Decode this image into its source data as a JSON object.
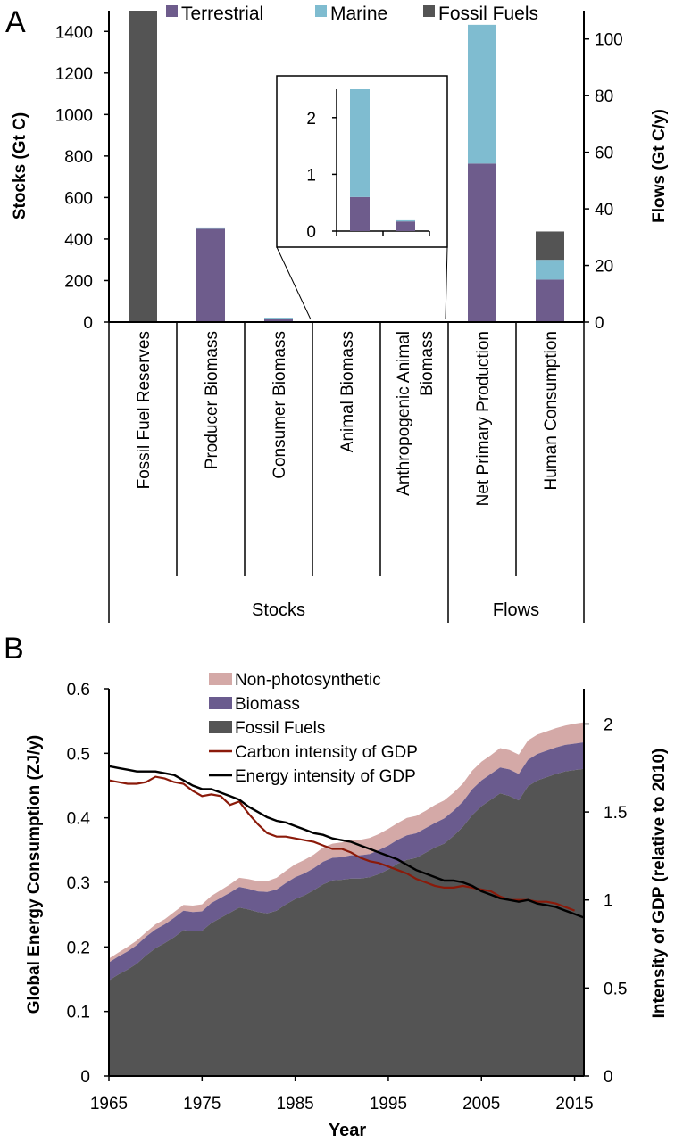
{
  "colors": {
    "terrestrial": "#6e5c8c",
    "marine": "#7fbcd0",
    "fossil": "#545454",
    "non_photosynthetic": "#d4a9a7",
    "biomass_energy": "#6a5b8e",
    "fossil_energy": "#545454",
    "carbon_intensity": "#8b1a0a",
    "energy_intensity": "#000000"
  },
  "chart_data": [
    {
      "type": "bar",
      "panel": "A",
      "legend": [
        "Terrestrial",
        "Marine",
        "Fossil Fuels"
      ],
      "ylabel": "Stocks (Gt C)",
      "ylabel_right": "Flows (Gt C/y)",
      "ylim": [
        0,
        1500
      ],
      "ylim_right": [
        0,
        110
      ],
      "yticks": [
        "0",
        "200",
        "400",
        "600",
        "800",
        "1000",
        "1200",
        "1400"
      ],
      "yticks_right": [
        "0",
        "20",
        "40",
        "60",
        "80",
        "100"
      ],
      "categories": [
        "Fossil Fuel Reserves",
        "Producer Biomass",
        "Consumer Biomass",
        "Animal Biomass",
        "Anthropogenic Animal Biomass",
        "Net Primary Production",
        "Human Consumption"
      ],
      "category_lines": [
        [
          "Fossil Fuel Reserves"
        ],
        [
          "Producer Biomass"
        ],
        [
          "Consumer Biomass"
        ],
        [
          "Animal Biomass"
        ],
        [
          "Anthropogenic Animal",
          "Biomass"
        ],
        [
          "Net Primary Production"
        ],
        [
          "Human Consumption"
        ]
      ],
      "groups": [
        {
          "label": "Stocks",
          "categories": [
            "Fossil Fuel Reserves",
            "Producer Biomass",
            "Consumer Biomass",
            "Animal Biomass",
            "Anthropogenic Animal Biomass"
          ]
        },
        {
          "label": "Flows",
          "categories": [
            "Net Primary Production",
            "Human Consumption"
          ]
        }
      ],
      "series": [
        {
          "name": "Terrestrial",
          "axis": [
            "left",
            "left",
            "left",
            "left",
            "left",
            "right",
            "right"
          ],
          "values": [
            0,
            450,
            15,
            0.6,
            0.17,
            56,
            15
          ]
        },
        {
          "name": "Marine",
          "axis": [
            "left",
            "left",
            "left",
            "left",
            "left",
            "right",
            "right"
          ],
          "values": [
            0,
            6,
            6,
            1.9,
            0.02,
            49,
            7
          ]
        },
        {
          "name": "Fossil Fuels",
          "axis": [
            "left",
            "left",
            "left",
            "left",
            "left",
            "right",
            "right"
          ],
          "values": [
            1500,
            0,
            0,
            0,
            0,
            0,
            10
          ]
        }
      ],
      "inset": {
        "ylim": [
          0,
          2.5
        ],
        "yticks": [
          "0",
          "1",
          "2"
        ],
        "categories": [
          "Animal Biomass",
          "Anthropogenic Animal Biomass"
        ],
        "series": [
          {
            "name": "Terrestrial",
            "values": [
              0.6,
              0.17
            ]
          },
          {
            "name": "Marine",
            "values": [
              1.9,
              0.02
            ]
          }
        ]
      },
      "panel_label": "A"
    },
    {
      "type": "area",
      "panel": "B",
      "xlabel": "Year",
      "ylabel": "Global Energy Consumption (ZJ/y)",
      "ylabel_right": "Intensity of GDP (relative to 2010)",
      "xlim": [
        1965,
        2016
      ],
      "ylim": [
        0,
        0.6
      ],
      "ylim_right": [
        0,
        2.2
      ],
      "xticks": [
        "1965",
        "1975",
        "1985",
        "1995",
        "2005",
        "2015"
      ],
      "yticks": [
        "0",
        "0.1",
        "0.2",
        "0.3",
        "0.4",
        "0.5",
        "0.6"
      ],
      "yticks_right": [
        "0",
        "0.5",
        "1",
        "1.5",
        "2"
      ],
      "legend": [
        "Non-photosynthetic",
        "Biomass",
        "Fossil Fuels",
        "Carbon intensity of GDP",
        "Energy intensity of GDP"
      ],
      "x": [
        1965,
        1966,
        1967,
        1968,
        1969,
        1970,
        1971,
        1972,
        1973,
        1974,
        1975,
        1976,
        1977,
        1978,
        1979,
        1980,
        1981,
        1982,
        1983,
        1984,
        1985,
        1986,
        1987,
        1988,
        1989,
        1990,
        1991,
        1992,
        1993,
        1994,
        1995,
        1996,
        1997,
        1998,
        1999,
        2000,
        2001,
        2002,
        2003,
        2004,
        2005,
        2006,
        2007,
        2008,
        2009,
        2010,
        2011,
        2012,
        2013,
        2014,
        2015,
        2016
      ],
      "series": [
        {
          "name": "Fossil Fuels",
          "stack": true,
          "values": [
            0.148,
            0.157,
            0.165,
            0.174,
            0.187,
            0.198,
            0.206,
            0.215,
            0.226,
            0.224,
            0.225,
            0.237,
            0.245,
            0.253,
            0.261,
            0.258,
            0.254,
            0.252,
            0.256,
            0.266,
            0.274,
            0.28,
            0.288,
            0.297,
            0.303,
            0.304,
            0.306,
            0.306,
            0.308,
            0.313,
            0.32,
            0.329,
            0.335,
            0.338,
            0.346,
            0.354,
            0.36,
            0.372,
            0.386,
            0.404,
            0.418,
            0.428,
            0.438,
            0.434,
            0.427,
            0.449,
            0.458,
            0.463,
            0.468,
            0.472,
            0.474,
            0.476
          ]
        },
        {
          "name": "Biomass",
          "stack": true,
          "values": [
            0.028,
            0.028,
            0.028,
            0.029,
            0.029,
            0.029,
            0.029,
            0.03,
            0.03,
            0.03,
            0.03,
            0.031,
            0.031,
            0.031,
            0.032,
            0.032,
            0.032,
            0.033,
            0.033,
            0.033,
            0.034,
            0.034,
            0.034,
            0.035,
            0.035,
            0.035,
            0.036,
            0.036,
            0.036,
            0.037,
            0.037,
            0.037,
            0.038,
            0.038,
            0.038,
            0.038,
            0.039,
            0.039,
            0.039,
            0.04,
            0.04,
            0.04,
            0.04,
            0.041,
            0.041,
            0.041,
            0.041,
            0.041,
            0.041,
            0.041,
            0.041,
            0.041
          ]
        },
        {
          "name": "Non-photosynthetic",
          "stack": true,
          "values": [
            0.006,
            0.006,
            0.007,
            0.007,
            0.007,
            0.008,
            0.008,
            0.009,
            0.009,
            0.01,
            0.011,
            0.011,
            0.012,
            0.013,
            0.014,
            0.015,
            0.016,
            0.017,
            0.018,
            0.019,
            0.02,
            0.021,
            0.021,
            0.022,
            0.022,
            0.023,
            0.024,
            0.024,
            0.025,
            0.025,
            0.026,
            0.026,
            0.027,
            0.027,
            0.027,
            0.028,
            0.028,
            0.028,
            0.028,
            0.029,
            0.029,
            0.029,
            0.03,
            0.03,
            0.03,
            0.03,
            0.03,
            0.03,
            0.03,
            0.03,
            0.031,
            0.031
          ]
        },
        {
          "name": "Carbon intensity of GDP",
          "axis": "right",
          "values": [
            1.68,
            1.67,
            1.66,
            1.66,
            1.67,
            1.7,
            1.69,
            1.67,
            1.66,
            1.62,
            1.59,
            1.6,
            1.59,
            1.54,
            1.56,
            1.49,
            1.43,
            1.38,
            1.36,
            1.36,
            1.35,
            1.34,
            1.33,
            1.31,
            1.29,
            1.29,
            1.27,
            1.24,
            1.22,
            1.21,
            1.19,
            1.17,
            1.15,
            1.12,
            1.1,
            1.08,
            1.07,
            1.07,
            1.08,
            1.07,
            1.06,
            1.05,
            1.02,
            1.0,
            1.0,
            1.0,
            0.99,
            0.99,
            0.98,
            0.96,
            0.94,
            null
          ]
        },
        {
          "name": "Energy intensity of GDP",
          "axis": "right",
          "values": [
            1.76,
            1.75,
            1.74,
            1.73,
            1.73,
            1.73,
            1.72,
            1.71,
            1.68,
            1.65,
            1.63,
            1.63,
            1.61,
            1.59,
            1.57,
            1.53,
            1.5,
            1.47,
            1.45,
            1.44,
            1.42,
            1.4,
            1.38,
            1.37,
            1.35,
            1.34,
            1.33,
            1.31,
            1.29,
            1.27,
            1.25,
            1.23,
            1.2,
            1.17,
            1.15,
            1.13,
            1.11,
            1.11,
            1.1,
            1.08,
            1.05,
            1.03,
            1.01,
            1.0,
            0.99,
            1.0,
            0.98,
            0.97,
            0.96,
            0.94,
            0.92,
            0.9
          ]
        }
      ],
      "panel_label": "B"
    }
  ]
}
